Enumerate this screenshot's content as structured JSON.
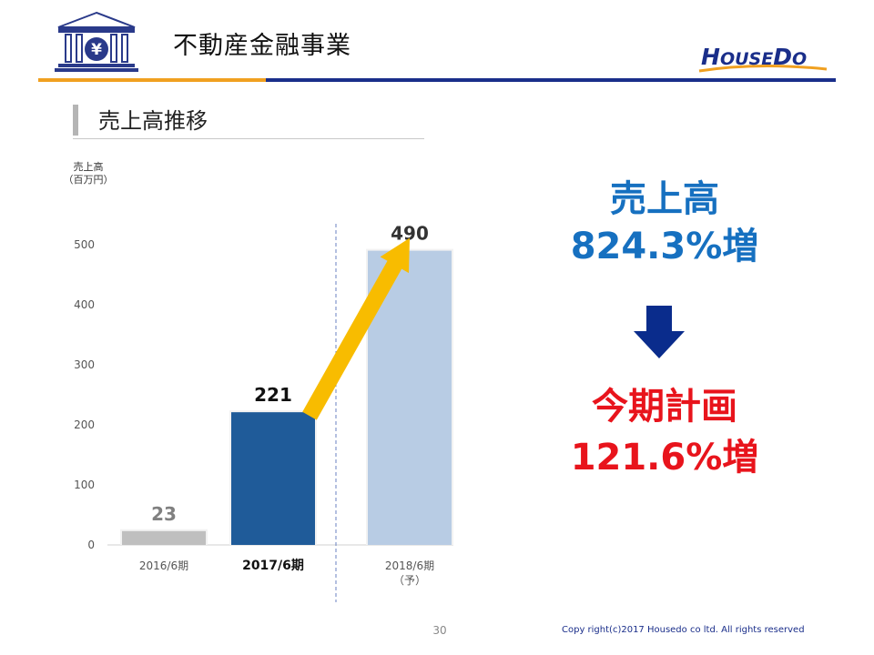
{
  "header": {
    "title": "不動産金融事業",
    "icon": "bank-yen-icon",
    "logo": "HouseDo",
    "logo_parts": [
      "H",
      "OUSE",
      "D",
      "O"
    ],
    "rule_colors": [
      "#f0a020",
      "#1a2e8a"
    ]
  },
  "section": {
    "title": "売上高推移"
  },
  "chart_data": {
    "type": "bar",
    "ylabel": "売上高\n（百万円）",
    "ylabel_lines": [
      "売上高",
      "（百万円）"
    ],
    "ylim": [
      0,
      500
    ],
    "yticks": [
      0,
      100,
      200,
      300,
      400,
      500
    ],
    "categories": [
      "2016/6期",
      "2017/6期",
      "2018/6期\n（予）"
    ],
    "category_lines": [
      [
        "2016/6期"
      ],
      [
        "2017/6期"
      ],
      [
        "2018/6期",
        "（予）"
      ]
    ],
    "values": [
      23,
      221,
      490
    ],
    "value_labels": [
      "23",
      "221",
      "490"
    ],
    "colors": [
      "#bfbfbf",
      "#1f5b99",
      "#b8cce4"
    ],
    "label_colors": [
      "#808080",
      "#111111",
      "#333333"
    ],
    "grid": false,
    "annotations": [
      "growth-arrow from 2017/6期 to 2018/6期",
      "dashed divider after 2017/6期"
    ]
  },
  "callouts": {
    "sales_label": "売上高",
    "sales_value": "824.3%増",
    "arrow_icon": "down-arrow-icon",
    "plan_label": "今期計画",
    "plan_value": "121.6%増",
    "colors": {
      "sales": "#1670c0",
      "plan": "#e8141c",
      "arrow": "#0a2c8c"
    }
  },
  "footer": {
    "page_number": "30",
    "copyright": "Copy right(c)2017 Housedo co ltd. All rights reserved"
  }
}
